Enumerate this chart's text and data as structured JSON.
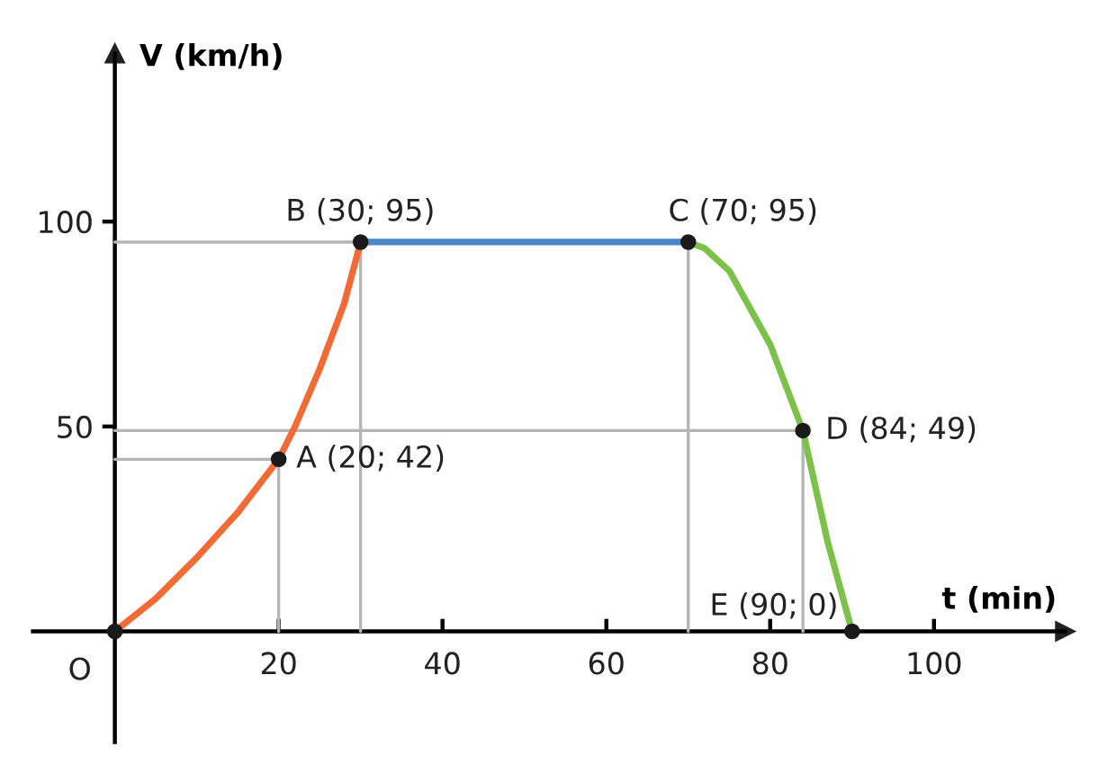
{
  "chart_data": {
    "type": "line",
    "xlabel": "t (min)",
    "ylabel": "V (km/h)",
    "xlim": [
      -10,
      116
    ],
    "ylim": [
      -27,
      141
    ],
    "xticks": [
      20,
      40,
      60,
      80,
      100
    ],
    "yticks": [
      50,
      100
    ],
    "grid": false,
    "legend": false,
    "marker": "none",
    "line_style": "solid",
    "series": [
      {
        "color": "#b5b5b5",
        "x": [
          0,
          30,
          30
        ],
        "values": [
          95,
          95,
          0
        ]
      },
      {
        "color": "#b5b5b5",
        "x": [
          0,
          20,
          20
        ],
        "values": [
          42,
          42,
          0
        ]
      },
      {
        "color": "#b5b5b5",
        "x": [
          70,
          70
        ],
        "values": [
          0,
          95
        ]
      },
      {
        "color": "#b5b5b5",
        "x": [
          0,
          84,
          84
        ],
        "values": [
          49,
          49,
          0
        ]
      },
      {
        "color": "#f26a36",
        "x": [
          0,
          5,
          10,
          15,
          20,
          22,
          25,
          28,
          30
        ],
        "values": [
          0,
          8,
          18,
          29,
          42,
          50,
          64,
          80,
          95
        ]
      },
      {
        "color": "#4a86c8",
        "x": [
          30,
          70
        ],
        "values": [
          95,
          95
        ]
      },
      {
        "color": "#7cc24a",
        "x": [
          70,
          72,
          75,
          80,
          84,
          87,
          90
        ],
        "values": [
          95,
          93.5,
          88,
          70,
          49,
          22,
          0
        ]
      },
      {
        "type": "scatter",
        "marker": "circle",
        "color": "#1a1a1a",
        "x": [
          0,
          20,
          30,
          70,
          84,
          90
        ],
        "values": [
          0,
          42,
          95,
          95,
          49,
          0
        ]
      }
    ],
    "annotations": [
      {
        "text": "O",
        "x": 0,
        "y": 0
      },
      {
        "text": "A (20; 42)",
        "x": 20,
        "y": 42
      },
      {
        "text": "B (30; 95)",
        "x": 30,
        "y": 95
      },
      {
        "text": "C (70; 95)",
        "x": 70,
        "y": 95
      },
      {
        "text": "D (84; 49)",
        "x": 84,
        "y": 49
      },
      {
        "text": "E (90; 0)",
        "x": 90,
        "y": 0
      }
    ]
  }
}
